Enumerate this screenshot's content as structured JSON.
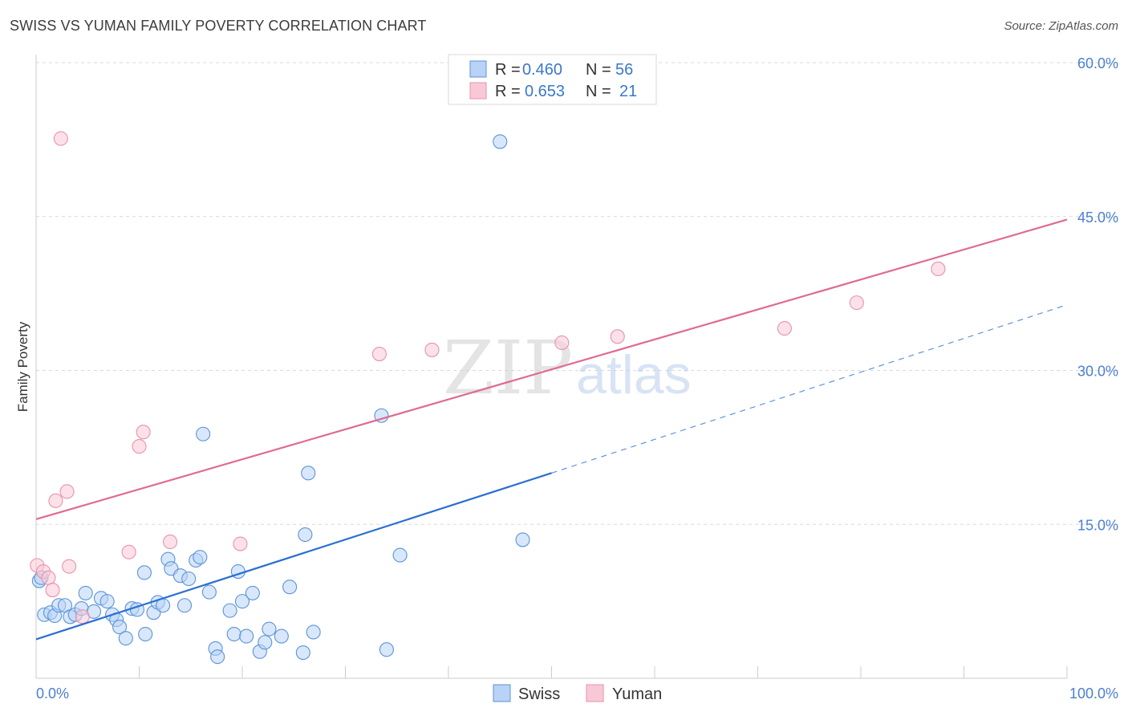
{
  "header": {
    "title": "SWISS VS YUMAN FAMILY POVERTY CORRELATION CHART",
    "source": "Source: ZipAtlas.com"
  },
  "watermark": {
    "part1": "ZIP",
    "part2": "atlas"
  },
  "legend": {
    "swiss": {
      "r_label": "R =",
      "r_value": "0.460",
      "n_label": "N =",
      "n_value": "56"
    },
    "yuman": {
      "r_label": "R =",
      "r_value": "0.653",
      "n_label": "N =",
      "n_value": "21"
    }
  },
  "colors": {
    "swiss_fill": "#b8d3f5",
    "swiss_stroke": "#5c93d8",
    "swiss_line": "#2a6fd0",
    "yuman_fill": "#f9c8d6",
    "yuman_stroke": "#e892ad",
    "yuman_line": "#e06a93",
    "tick_text": "#4a7fd0",
    "grid": "#d9d9d9"
  },
  "chart_data": {
    "type": "scatter",
    "title": "SWISS VS YUMAN FAMILY POVERTY CORRELATION CHART",
    "xlabel": "",
    "ylabel": "Family Poverty",
    "xlim": [
      0,
      100
    ],
    "ylim": [
      0,
      60
    ],
    "x_tick_labels": [
      "0.0%",
      "100.0%"
    ],
    "y_ticks": [
      15,
      30,
      45,
      60
    ],
    "y_tick_labels": [
      "15.0%",
      "30.0%",
      "45.0%",
      "60.0%"
    ],
    "grid": true,
    "series": [
      {
        "name": "Swiss",
        "points": [
          [
            0.3,
            9.5
          ],
          [
            0.8,
            6.2
          ],
          [
            1.4,
            6.4
          ],
          [
            1.8,
            6.1
          ],
          [
            2.2,
            7.1
          ],
          [
            2.8,
            7.1
          ],
          [
            3.3,
            6.0
          ],
          [
            3.8,
            6.2
          ],
          [
            4.4,
            6.8
          ],
          [
            4.8,
            8.3
          ],
          [
            5.6,
            6.5
          ],
          [
            6.3,
            7.8
          ],
          [
            6.9,
            7.5
          ],
          [
            7.4,
            6.2
          ],
          [
            7.8,
            5.7
          ],
          [
            8.1,
            5.0
          ],
          [
            8.7,
            3.9
          ],
          [
            9.3,
            6.8
          ],
          [
            9.8,
            6.7
          ],
          [
            10.5,
            10.3
          ],
          [
            10.6,
            4.3
          ],
          [
            11.4,
            6.4
          ],
          [
            11.8,
            7.4
          ],
          [
            12.3,
            7.1
          ],
          [
            12.8,
            11.6
          ],
          [
            13.1,
            10.7
          ],
          [
            14.0,
            10.0
          ],
          [
            14.4,
            7.1
          ],
          [
            14.8,
            9.7
          ],
          [
            15.5,
            11.5
          ],
          [
            15.9,
            11.8
          ],
          [
            16.2,
            23.8
          ],
          [
            16.8,
            8.4
          ],
          [
            17.4,
            2.9
          ],
          [
            17.6,
            2.1
          ],
          [
            18.8,
            6.6
          ],
          [
            19.2,
            4.3
          ],
          [
            19.6,
            10.4
          ],
          [
            20.0,
            7.5
          ],
          [
            20.4,
            4.1
          ],
          [
            21.0,
            8.3
          ],
          [
            21.7,
            2.6
          ],
          [
            22.2,
            3.5
          ],
          [
            22.6,
            4.8
          ],
          [
            23.8,
            4.1
          ],
          [
            24.6,
            8.9
          ],
          [
            25.9,
            2.5
          ],
          [
            26.1,
            14.0
          ],
          [
            26.4,
            20.0
          ],
          [
            26.9,
            4.5
          ],
          [
            34.0,
            2.8
          ],
          [
            33.5,
            25.6
          ],
          [
            35.3,
            12.0
          ],
          [
            45.0,
            52.3
          ],
          [
            47.2,
            13.5
          ],
          [
            0.5,
            9.8
          ]
        ]
      },
      {
        "name": "Yuman",
        "points": [
          [
            0.1,
            11.0
          ],
          [
            0.7,
            10.4
          ],
          [
            1.2,
            9.8
          ],
          [
            1.6,
            8.6
          ],
          [
            1.9,
            17.3
          ],
          [
            2.4,
            52.6
          ],
          [
            3.0,
            18.2
          ],
          [
            3.2,
            10.9
          ],
          [
            4.5,
            6.0
          ],
          [
            9.0,
            12.3
          ],
          [
            10.0,
            22.6
          ],
          [
            10.4,
            24.0
          ],
          [
            13.0,
            13.3
          ],
          [
            19.8,
            13.1
          ],
          [
            33.3,
            31.6
          ],
          [
            38.4,
            32.0
          ],
          [
            51.0,
            32.7
          ],
          [
            56.4,
            33.3
          ],
          [
            72.6,
            34.1
          ],
          [
            79.6,
            36.6
          ],
          [
            87.5,
            39.9
          ]
        ]
      }
    ],
    "trendlines": [
      {
        "series": "Swiss",
        "solid_from": [
          0,
          3.8
        ],
        "solid_to": [
          50,
          20.0
        ],
        "dashed_to": [
          100,
          36.4
        ]
      },
      {
        "series": "Yuman",
        "from": [
          0,
          15.5
        ],
        "to": [
          100,
          44.7
        ]
      }
    ],
    "legend_entries": [
      "Swiss",
      "Yuman"
    ]
  }
}
